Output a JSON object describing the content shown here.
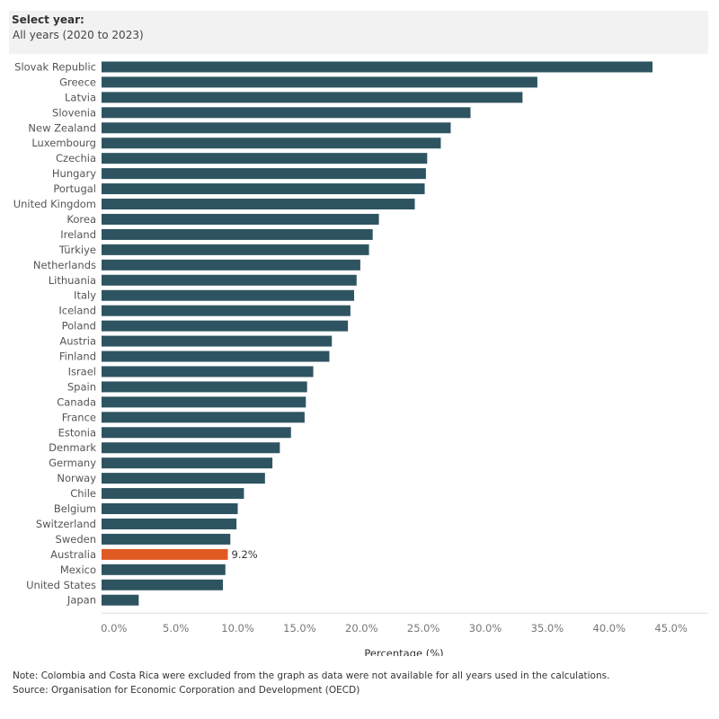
{
  "filter": {
    "label": "Select year:",
    "value": "All years (2020 to 2023)"
  },
  "chart_data": {
    "type": "bar",
    "orientation": "horizontal",
    "categories": [
      "Slovak Republic",
      "Greece",
      "Latvia",
      "Slovenia",
      "New Zealand",
      "Luxembourg",
      "Czechia",
      "Hungary",
      "Portugal",
      "United Kingdom",
      "Korea",
      "Ireland",
      "Türkiye",
      "Netherlands",
      "Lithuania",
      "Italy",
      "Iceland",
      "Poland",
      "Austria",
      "Finland",
      "Israel",
      "Spain",
      "Canada",
      "France",
      "Estonia",
      "Denmark",
      "Germany",
      "Norway",
      "Chile",
      "Belgium",
      "Switzerland",
      "Sweden",
      "Australia",
      "Mexico",
      "United States",
      "Japan"
    ],
    "values": [
      43.5,
      34.2,
      33.0,
      28.8,
      27.2,
      26.4,
      25.3,
      25.2,
      25.1,
      24.3,
      21.4,
      20.9,
      20.6,
      19.9,
      19.6,
      19.4,
      19.1,
      18.9,
      17.6,
      17.4,
      16.1,
      15.6,
      15.5,
      15.4,
      14.3,
      13.4,
      12.8,
      12.2,
      10.5,
      10.0,
      9.9,
      9.4,
      9.2,
      9.0,
      8.8,
      2.0
    ],
    "highlight": {
      "category": "Australia",
      "label": "9.2%"
    },
    "xlabel": "Percentage (%)",
    "ylabel": "",
    "xlim": [
      -1,
      48
    ],
    "ticks": [
      "0.0%",
      "5.0%",
      "10.0%",
      "15.0%",
      "20.0%",
      "25.0%",
      "30.0%",
      "35.0%",
      "40.0%",
      "45.0%"
    ],
    "colors": {
      "bar": "#2e5461",
      "highlight": "#e05a24"
    },
    "grid": false,
    "legend": "none"
  },
  "notes": {
    "note": "Note: Colombia and Costa Rica were excluded from the graph as data were not available for all years used in the calculations.",
    "source": "Source: Organisation for Economic Corporation and Development (OECD)"
  }
}
